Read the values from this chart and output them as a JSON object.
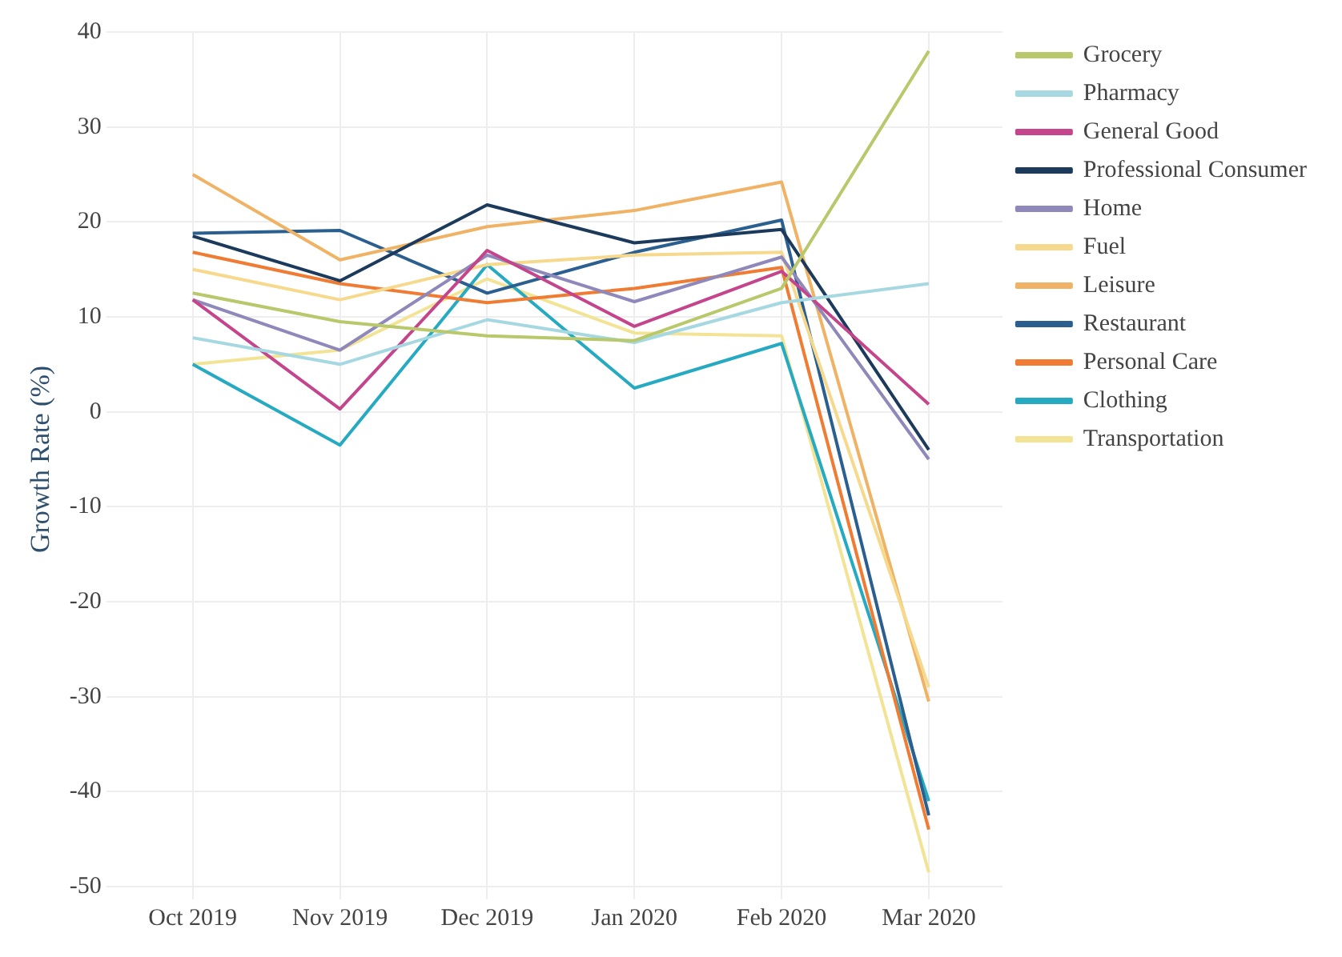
{
  "chart_data": {
    "type": "line",
    "ylabel": "Growth Rate (%)",
    "categories": [
      "Oct 2019",
      "Nov 2019",
      "Dec 2019",
      "Jan 2020",
      "Feb 2020",
      "Mar 2020"
    ],
    "ylim": [
      -50,
      40
    ],
    "yticks": [
      -50,
      -40,
      -30,
      -20,
      -10,
      0,
      10,
      20,
      30,
      40
    ],
    "grid": true,
    "legend": "top right",
    "marker": "none",
    "series": [
      {
        "name": "Grocery",
        "color": "#b8c86a",
        "values": [
          12.5,
          9.5,
          8,
          7.5,
          13,
          38
        ]
      },
      {
        "name": "Pharmacy",
        "color": "#a6d8e2",
        "values": [
          7.8,
          5,
          9.7,
          7.3,
          11.5,
          13.5
        ]
      },
      {
        "name": "General Good",
        "color": "#c4458c",
        "values": [
          11.8,
          0.3,
          17,
          9,
          14.8,
          0.8
        ]
      },
      {
        "name": "Professional Consumer",
        "color": "#1b3a5c",
        "values": [
          18.5,
          13.8,
          21.8,
          17.8,
          19.2,
          -4
        ]
      },
      {
        "name": "Home",
        "color": "#8f88ba",
        "values": [
          11.8,
          6.5,
          16.5,
          11.6,
          16.3,
          -5
        ]
      },
      {
        "name": "Fuel",
        "color": "#f6d98c",
        "values": [
          15,
          11.8,
          15.5,
          16.5,
          16.8,
          -29
        ]
      },
      {
        "name": "Leisure",
        "color": "#f0b264",
        "values": [
          25,
          16,
          19.5,
          21.2,
          24.2,
          -30.5
        ]
      },
      {
        "name": "Restaurant",
        "color": "#2b5f90",
        "values": [
          18.8,
          19.1,
          12.5,
          16.8,
          20.2,
          -42.5
        ]
      },
      {
        "name": "Personal Care",
        "color": "#f07b32",
        "values": [
          16.8,
          13.5,
          11.5,
          13,
          15.2,
          -44
        ]
      },
      {
        "name": "Clothing",
        "color": "#25aac2",
        "values": [
          5,
          -3.5,
          15.5,
          2.5,
          7.2,
          -41
        ]
      },
      {
        "name": "Transportation",
        "color": "#f3e394",
        "values": [
          5,
          6.5,
          14,
          8.3,
          8,
          -48.5
        ]
      }
    ]
  }
}
